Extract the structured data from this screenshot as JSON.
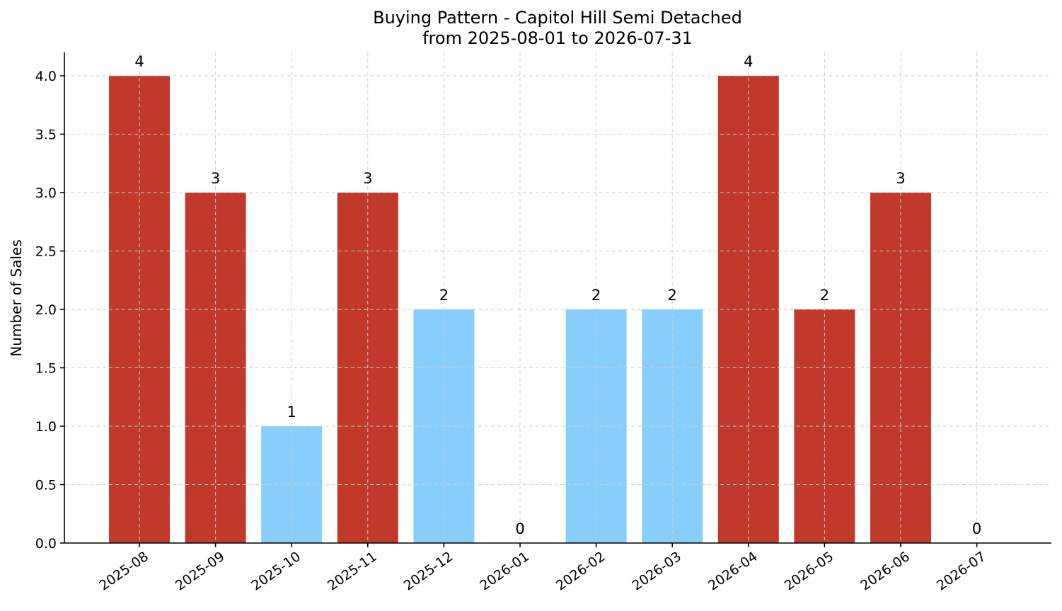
{
  "chart_data": {
    "type": "bar",
    "title_line1": "Buying Pattern - Capitol Hill Semi Detached",
    "title_line2": "from 2025-08-01 to 2026-07-31",
    "xlabel": "",
    "ylabel": "Number of Sales",
    "ylim": [
      0,
      4.2
    ],
    "yticks": [
      "0.0",
      "0.5",
      "1.0",
      "1.5",
      "2.0",
      "2.5",
      "3.0",
      "3.5",
      "4.0"
    ],
    "grid": true,
    "categories": [
      "2025-08",
      "2025-09",
      "2025-10",
      "2025-11",
      "2025-12",
      "2026-01",
      "2026-02",
      "2026-03",
      "2026-04",
      "2026-05",
      "2026-06",
      "2026-07"
    ],
    "values": [
      4,
      3,
      1,
      3,
      2,
      0,
      2,
      2,
      4,
      2,
      3,
      0
    ],
    "value_labels": [
      "4",
      "3",
      "1",
      "3",
      "2",
      "0",
      "2",
      "2",
      "4",
      "2",
      "3",
      "0"
    ],
    "colors": {
      "high": "#c0392b",
      "low": "#87cefa"
    },
    "bar_color_keys": [
      "high",
      "high",
      "low",
      "high",
      "low",
      "low",
      "low",
      "low",
      "high",
      "high",
      "high",
      "low"
    ]
  }
}
